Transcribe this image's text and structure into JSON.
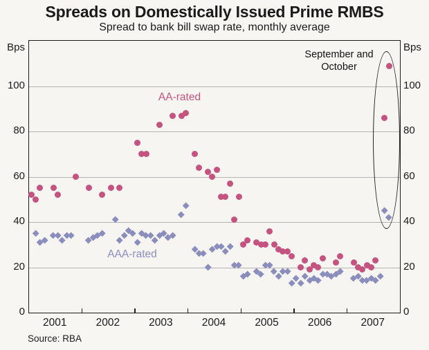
{
  "title": "Spreads on Domestically Issued Prime RMBS",
  "subtitle": "Spread to bank bill swap rate, monthly average",
  "source": "Source: RBA",
  "y_axis": {
    "unit_label": "Bps",
    "ticks": [
      0,
      20,
      40,
      60,
      80,
      100
    ],
    "min": 0,
    "max": 120
  },
  "x_axis": {
    "year_labels": [
      "2001",
      "2002",
      "2003",
      "2004",
      "2005",
      "2006",
      "2007"
    ],
    "start_year": 2001,
    "end_year": 2008
  },
  "annotation": {
    "line1": "September and",
    "line2": "October"
  },
  "colors": {
    "aa": "#c55380",
    "aaa": "#8b8ebc",
    "gridline": "#b3b3b3",
    "axis": "#1c1c1c"
  },
  "chart_data": {
    "type": "scatter",
    "title": "Spreads on Domestically Issued Prime RMBS",
    "subtitle": "Spread to bank bill swap rate, monthly average",
    "ylabel": "Bps",
    "ylim": [
      0,
      120
    ],
    "xlim": [
      "2001-01",
      "2008-01"
    ],
    "grid": "horizontal",
    "legend_position": "in-plot-text-labels",
    "highlight": {
      "label": "September and October",
      "months": [
        "2007-09",
        "2007-10"
      ]
    },
    "series": [
      {
        "name": "AA-rated",
        "marker": "circle",
        "color": "#c55380",
        "points": [
          [
            "2001-01",
            52
          ],
          [
            "2001-02",
            50
          ],
          [
            "2001-03",
            55
          ],
          [
            "2001-06",
            55
          ],
          [
            "2001-07",
            52
          ],
          [
            "2001-11",
            60
          ],
          [
            "2002-02",
            55
          ],
          [
            "2002-05",
            52
          ],
          [
            "2002-07",
            55
          ],
          [
            "2002-09",
            55
          ],
          [
            "2003-01",
            75
          ],
          [
            "2003-02",
            70
          ],
          [
            "2003-03",
            70
          ],
          [
            "2003-06",
            83
          ],
          [
            "2003-09",
            87
          ],
          [
            "2003-11",
            87
          ],
          [
            "2003-12",
            88
          ],
          [
            "2004-02",
            70
          ],
          [
            "2004-03",
            64
          ],
          [
            "2004-05",
            62
          ],
          [
            "2004-06",
            60
          ],
          [
            "2004-07",
            63
          ],
          [
            "2004-08",
            51
          ],
          [
            "2004-09",
            51
          ],
          [
            "2004-10",
            57
          ],
          [
            "2004-11",
            41
          ],
          [
            "2004-12",
            51
          ],
          [
            "2005-01",
            30
          ],
          [
            "2005-02",
            32
          ],
          [
            "2005-04",
            31
          ],
          [
            "2005-05",
            30
          ],
          [
            "2005-06",
            30
          ],
          [
            "2005-07",
            36
          ],
          [
            "2005-08",
            30
          ],
          [
            "2005-09",
            28
          ],
          [
            "2005-10",
            27
          ],
          [
            "2005-11",
            27
          ],
          [
            "2005-12",
            25
          ],
          [
            "2006-02",
            20
          ],
          [
            "2006-03",
            23
          ],
          [
            "2006-04",
            19
          ],
          [
            "2006-05",
            21
          ],
          [
            "2006-06",
            20
          ],
          [
            "2006-07",
            24
          ],
          [
            "2006-10",
            22
          ],
          [
            "2006-11",
            25
          ],
          [
            "2007-02",
            22
          ],
          [
            "2007-03",
            20
          ],
          [
            "2007-04",
            19
          ],
          [
            "2007-05",
            21
          ],
          [
            "2007-06",
            20
          ],
          [
            "2007-07",
            23
          ],
          [
            "2007-09",
            86
          ],
          [
            "2007-10",
            109
          ]
        ]
      },
      {
        "name": "AAA-rated",
        "marker": "diamond",
        "color": "#8b8ebc",
        "points": [
          [
            "2001-02",
            35
          ],
          [
            "2001-03",
            31
          ],
          [
            "2001-04",
            32
          ],
          [
            "2001-06",
            34
          ],
          [
            "2001-07",
            34
          ],
          [
            "2001-08",
            32
          ],
          [
            "2001-09",
            34
          ],
          [
            "2001-10",
            34
          ],
          [
            "2002-02",
            32
          ],
          [
            "2002-03",
            33
          ],
          [
            "2002-04",
            34
          ],
          [
            "2002-05",
            35
          ],
          [
            "2002-08",
            41
          ],
          [
            "2002-09",
            32
          ],
          [
            "2002-10",
            34
          ],
          [
            "2002-11",
            36
          ],
          [
            "2002-12",
            35
          ],
          [
            "2003-01",
            31
          ],
          [
            "2003-02",
            35
          ],
          [
            "2003-03",
            34
          ],
          [
            "2003-04",
            34
          ],
          [
            "2003-05",
            32
          ],
          [
            "2003-06",
            34
          ],
          [
            "2003-07",
            35
          ],
          [
            "2003-08",
            33
          ],
          [
            "2003-09",
            34
          ],
          [
            "2003-11",
            43
          ],
          [
            "2003-12",
            47
          ],
          [
            "2004-02",
            28
          ],
          [
            "2004-03",
            26
          ],
          [
            "2004-04",
            26
          ],
          [
            "2004-05",
            20
          ],
          [
            "2004-06",
            28
          ],
          [
            "2004-07",
            29
          ],
          [
            "2004-08",
            29
          ],
          [
            "2004-09",
            27
          ],
          [
            "2004-10",
            29
          ],
          [
            "2004-11",
            21
          ],
          [
            "2004-12",
            21
          ],
          [
            "2005-01",
            16
          ],
          [
            "2005-02",
            17
          ],
          [
            "2005-04",
            18
          ],
          [
            "2005-05",
            17
          ],
          [
            "2005-06",
            21
          ],
          [
            "2005-07",
            21
          ],
          [
            "2005-08",
            18
          ],
          [
            "2005-09",
            16
          ],
          [
            "2005-10",
            18
          ],
          [
            "2005-11",
            18
          ],
          [
            "2005-12",
            13
          ],
          [
            "2006-01",
            15
          ],
          [
            "2006-02",
            13
          ],
          [
            "2006-03",
            16
          ],
          [
            "2006-04",
            14
          ],
          [
            "2006-05",
            15
          ],
          [
            "2006-06",
            14
          ],
          [
            "2006-07",
            17
          ],
          [
            "2006-08",
            17
          ],
          [
            "2006-09",
            16
          ],
          [
            "2006-10",
            17
          ],
          [
            "2006-11",
            18
          ],
          [
            "2007-02",
            15
          ],
          [
            "2007-03",
            16
          ],
          [
            "2007-04",
            14
          ],
          [
            "2007-05",
            14
          ],
          [
            "2007-06",
            15
          ],
          [
            "2007-07",
            14
          ],
          [
            "2007-08",
            16
          ],
          [
            "2007-09",
            45
          ],
          [
            "2007-10",
            42
          ]
        ]
      }
    ]
  }
}
